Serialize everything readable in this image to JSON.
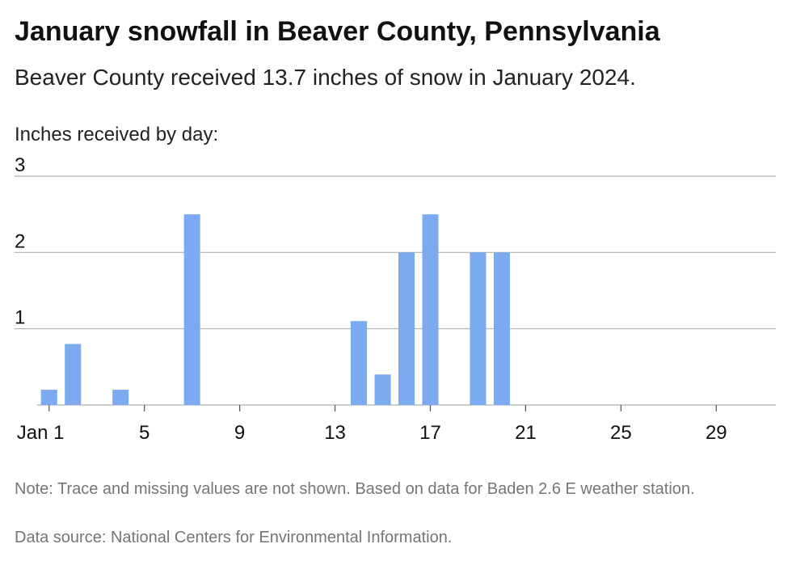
{
  "header": {
    "title": "January snowfall in Beaver County, Pennsylvania",
    "subtitle": "Beaver County received 13.7 inches of snow in January 2024."
  },
  "chart_label": "Inches received by day:",
  "footer": {
    "note": "Note: Trace and missing values are not shown. Based on data for Baden 2.6 E weather station.",
    "source": "Data source: National Centers for Environmental Information."
  },
  "colors": {
    "bar": "#7caaf0",
    "grid": "#b0b0b0",
    "text": "#111111",
    "footnote": "#757575"
  },
  "chart_data": {
    "type": "bar",
    "title": "January snowfall in Beaver County, Pennsylvania",
    "subtitle": "Beaver County received 13.7 inches of snow in January 2024.",
    "ylabel": "Inches received by day:",
    "xlabel": "",
    "x": [
      1,
      2,
      4,
      7,
      14,
      15,
      16,
      17,
      19,
      20
    ],
    "values": [
      0.2,
      0.8,
      0.2,
      2.5,
      1.1,
      0.4,
      2.0,
      2.5,
      2.0,
      2.0
    ],
    "xlim": [
      1,
      31
    ],
    "ylim": [
      0,
      3
    ],
    "y_ticks": [
      1,
      2,
      3
    ],
    "x_tick_values": [
      1,
      5,
      9,
      13,
      17,
      21,
      25,
      29
    ],
    "x_tick_labels": [
      "Jan 1",
      "5",
      "9",
      "13",
      "17",
      "21",
      "25",
      "29"
    ],
    "grid": true,
    "legend": "none"
  }
}
